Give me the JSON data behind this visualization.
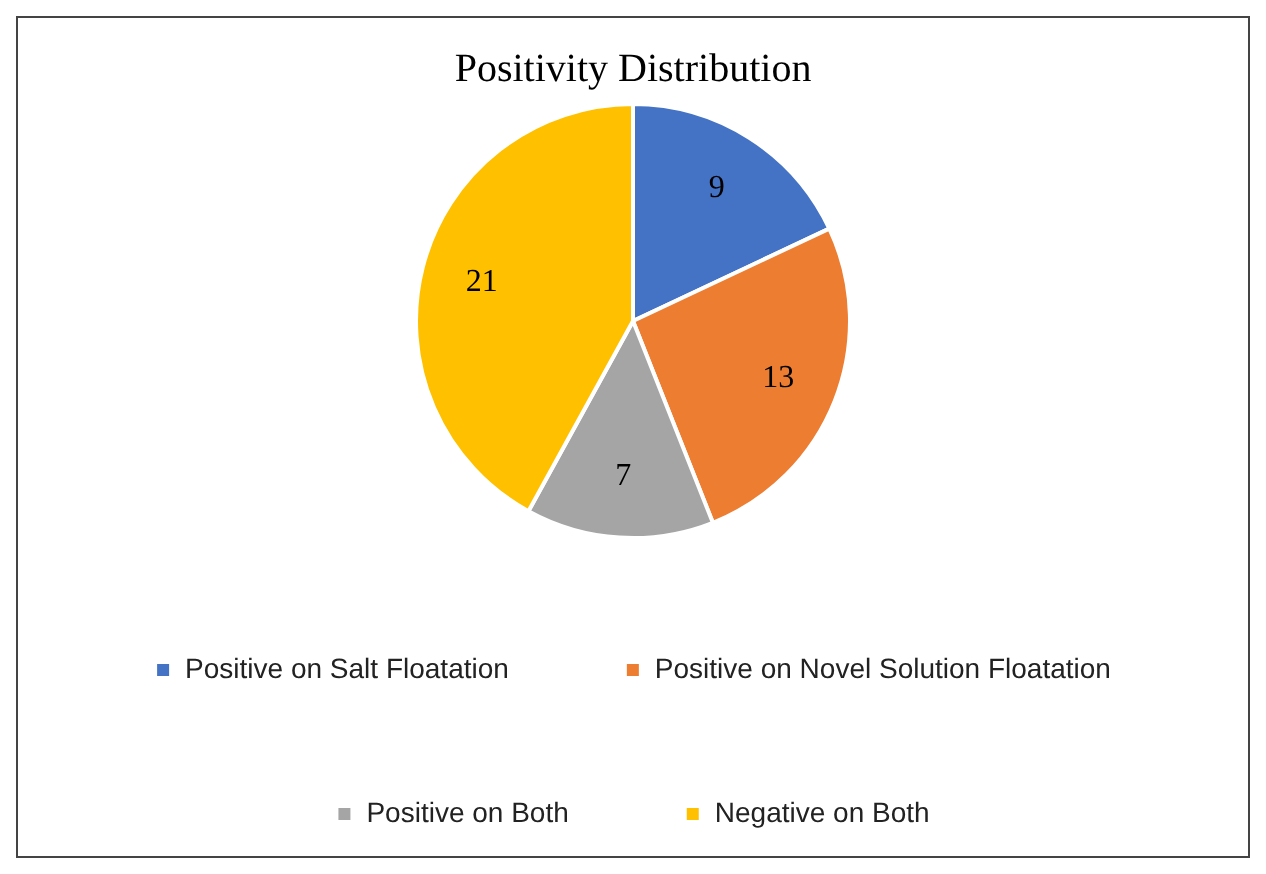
{
  "chart_data": {
    "type": "pie",
    "title": "Positivity Distribution",
    "categories": [
      "Positive on Salt Floatation",
      "Positive on Novel Solution Floatation",
      "Positive on Both",
      "Negative on Both"
    ],
    "values": [
      9,
      13,
      7,
      21
    ],
    "colors": [
      "#4472c4",
      "#ed7d31",
      "#a5a5a5",
      "#ffc000"
    ],
    "data_labels": true,
    "legend": "bottom"
  }
}
